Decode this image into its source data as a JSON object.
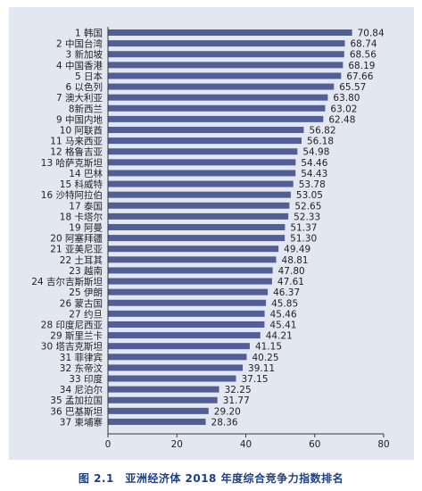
{
  "caption": "图 2.1　亚洲经济体 2018 年度综合竞争力指数排名",
  "colors": {
    "panel": "#e3e7f1",
    "bar": "#525f96",
    "axis": "#3a3a3a",
    "caption": "#1f3f84",
    "text": "#222222"
  },
  "chart_data": {
    "type": "bar",
    "orientation": "horizontal",
    "title": "",
    "xlabel": "",
    "ylabel": "",
    "xlim": [
      0,
      80
    ],
    "xticks": [
      0,
      20,
      40,
      60,
      80
    ],
    "grid": false,
    "categories": [
      "1 韩国",
      "2 中国台湾",
      "3 新加坡",
      "4 中国香港",
      "5 日本",
      "6 以色列",
      "7 澳大利亚",
      "8新西兰",
      "9 中国内地",
      "10 阿联酋",
      "11 马来西亚",
      "12 格鲁吉亚",
      "13 哈萨克斯坦",
      "14 巴林",
      "15 科威特",
      "16 沙特阿拉伯",
      "17 泰国",
      "18 卡塔尔",
      "19 阿曼",
      "20 阿塞拜疆",
      "21 亚美尼亚",
      "22 土耳其",
      "23 越南",
      "24 吉尔吉斯斯坦",
      "25 伊朗",
      "26 蒙古国",
      "27 约旦",
      "28 印度尼西亚",
      "29 斯里兰卡",
      "30 塔吉克斯坦",
      "31 菲律宾",
      "32 东帝汶",
      "33 印度",
      "34 尼泊尔",
      "35 孟加拉国",
      "36 巴基斯坦",
      "37 柬埔寨"
    ],
    "values": [
      70.84,
      68.74,
      68.56,
      68.19,
      67.66,
      65.57,
      63.8,
      63.02,
      62.48,
      56.82,
      56.18,
      54.98,
      54.46,
      54.43,
      53.78,
      53.05,
      52.65,
      52.33,
      51.37,
      51.3,
      49.49,
      48.81,
      47.8,
      47.61,
      46.37,
      45.85,
      45.46,
      45.41,
      44.21,
      41.15,
      40.25,
      39.11,
      37.15,
      32.25,
      31.77,
      29.2,
      28.36
    ],
    "value_labels": [
      "70.84",
      "68.74",
      "68.56",
      "68.19",
      "67.66",
      "65.57",
      "63.80",
      "63.02",
      "62.48",
      "56.82",
      "56.18",
      "54.98",
      "54.46",
      "54.43",
      "53.78",
      "53.05",
      "52.65",
      "52.33",
      "51.37",
      "51.30",
      "49.49",
      "48.81",
      "47.80",
      "47.61",
      "46.37",
      "45.85",
      "45.46",
      "45.41",
      "44.21",
      "41.15",
      "40.25",
      "39.11",
      "37.15",
      "32.25",
      "31.77",
      "29.20",
      "28.36"
    ]
  }
}
